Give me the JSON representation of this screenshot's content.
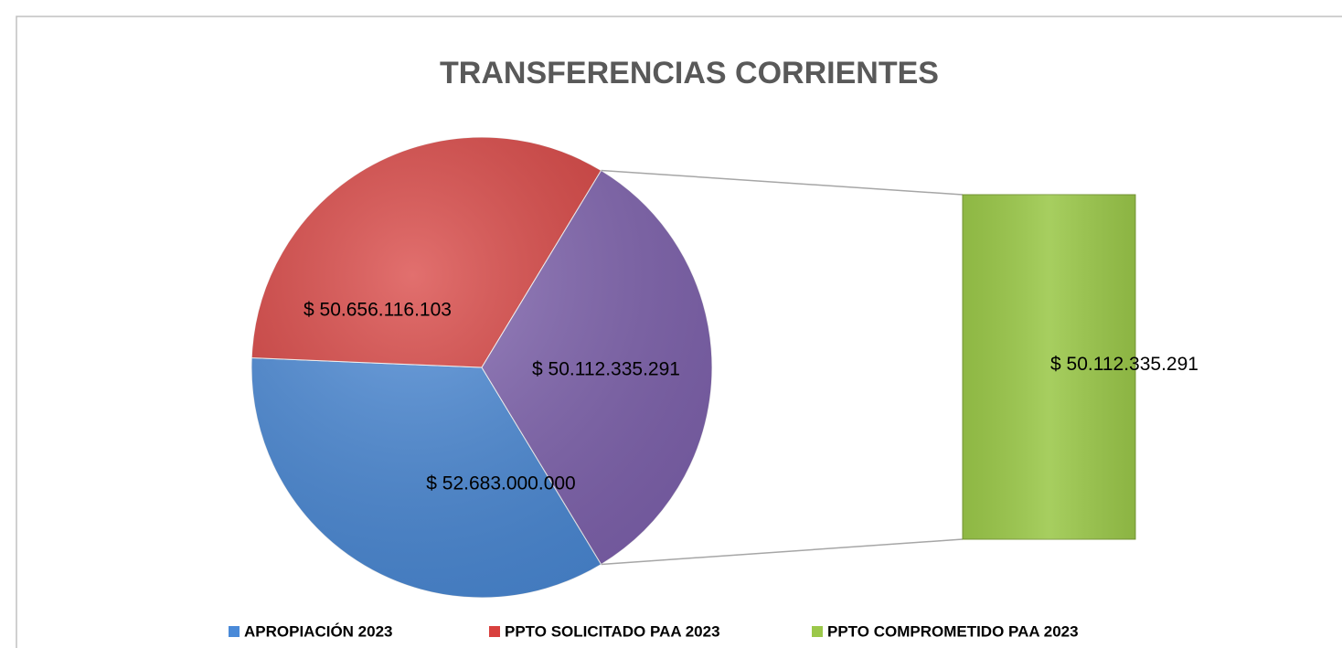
{
  "chart_data": {
    "type": "bar_of_pie",
    "title": "TRANSFERENCIAS CORRIENTES",
    "categories": [
      "APROPIACIÓN 2023",
      "PPTO SOLICITADO PAA 2023",
      "PPTO COMPROMETIDO PAA 2023"
    ],
    "values": [
      52683000000,
      50656116103,
      50112335291
    ],
    "value_labels": [
      "$ 52.683.000.000",
      "$ 50.656.116.103",
      "$ 50.112.335.291"
    ],
    "colors": [
      "#4a8ad8",
      "#d8403e",
      "#9bc84a"
    ],
    "other_color": "#8063b0",
    "legend": "bottom"
  }
}
